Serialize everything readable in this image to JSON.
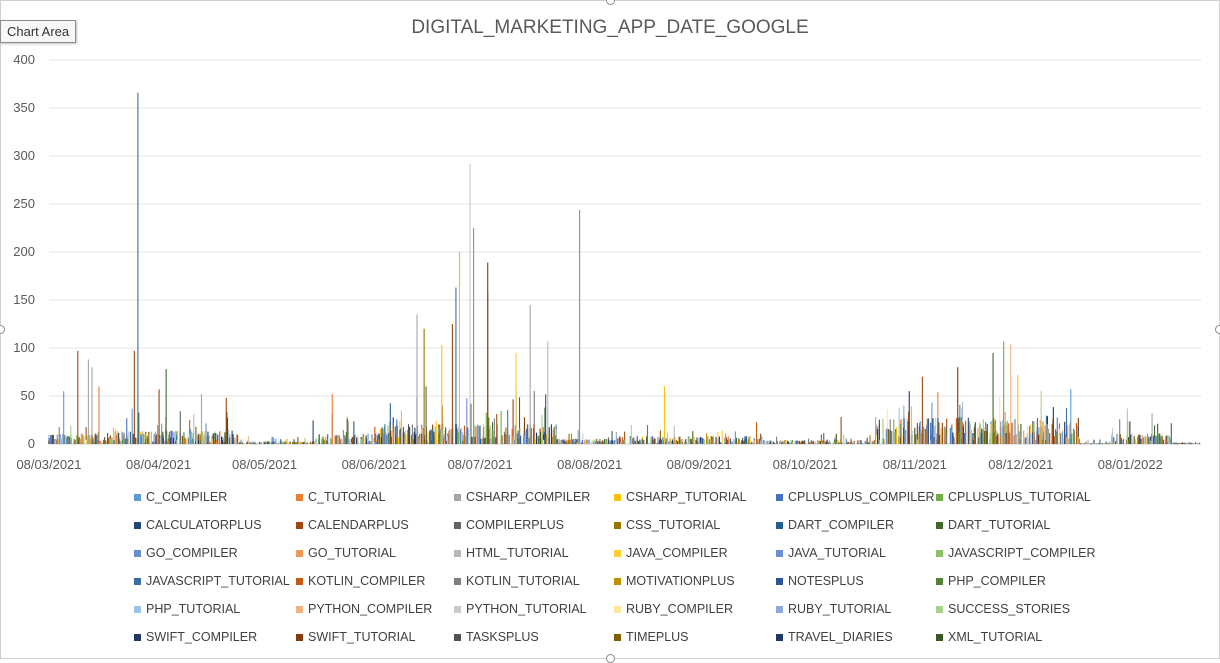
{
  "tooltip": "Chart Area",
  "chart_data": {
    "type": "bar",
    "title": "DIGITAL_MARKETING_APP_DATE_GOOGLE",
    "xlabel": "",
    "ylabel": "",
    "ylim": [
      0,
      400
    ],
    "yticks": [
      "0",
      "50",
      "100",
      "150",
      "200",
      "250",
      "300",
      "350",
      "400"
    ],
    "x_start": "08/03/2021",
    "x_end": "28/01/2022",
    "x_ticks": [
      "08/03/2021",
      "08/04/2021",
      "08/05/2021",
      "08/06/2021",
      "08/07/2021",
      "08/08/2021",
      "08/09/2021",
      "08/10/2021",
      "08/11/2021",
      "08/12/2021",
      "08/01/2022"
    ],
    "grid": true,
    "legend_position": "bottom",
    "colors": [
      "#5b9bd5",
      "#ed7d31",
      "#a5a5a5",
      "#ffc000",
      "#4472c4",
      "#70ad47",
      "#264478",
      "#9e480e",
      "#636363",
      "#997300",
      "#255e91",
      "#43682b",
      "#698ed0",
      "#f1975a",
      "#b7b7b7",
      "#ffcd33",
      "#6b8fd6",
      "#8cc168",
      "#3a6ea5",
      "#c55a11",
      "#7f7f7f",
      "#bf9000",
      "#2f5597",
      "#548235",
      "#9dc3e6",
      "#f4b183",
      "#c9c9c9",
      "#ffe699",
      "#8faadc",
      "#a9d18e",
      "#1f3864",
      "#843c0c",
      "#525252",
      "#7f6000",
      "#1f3864",
      "#375623"
    ],
    "series_names": [
      "C_COMPILER",
      "C_TUTORIAL",
      "CSHARP_COMPILER",
      "CSHARP_TUTORIAL",
      "CPLUSPLUS_COMPILER",
      "CPLUSPLUS_TUTORIAL",
      "CALCULATORPLUS",
      "CALENDARPLUS",
      "COMPILERPLUS",
      "CSS_TUTORIAL",
      "DART_COMPILER",
      "DART_TUTORIAL",
      "GO_COMPILER",
      "GO_TUTORIAL",
      "HTML_TUTORIAL",
      "JAVA_COMPILER",
      "JAVA_TUTORIAL",
      "JAVASCRIPT_COMPILER",
      "JAVASCRIPT_TUTORIAL",
      "KOTLIN_COMPILER",
      "KOTLIN_TUTORIAL",
      "MOTIVATIONPLUS",
      "NOTESPLUS",
      "PHP_COMPILER",
      "PHP_TUTORIAL",
      "PYTHON_COMPILER",
      "PYTHON_TUTORIAL",
      "RUBY_COMPILER",
      "RUBY_TUTORIAL",
      "SUCCESS_STORIES",
      "SWIFT_COMPILER",
      "SWIFT_TUTORIAL",
      "TASKSPLUS",
      "TIMEPLUS",
      "TRAVEL_DIARIES",
      "XML_TUTORIAL"
    ],
    "notable_points": [
      {
        "date": "2021-03-12",
        "value": 55,
        "series": "C_COMPILER"
      },
      {
        "date": "2021-03-16",
        "value": 97,
        "series": "CALENDARPLUS"
      },
      {
        "date": "2021-03-19",
        "value": 88,
        "series": "CSHARP_COMPILER"
      },
      {
        "date": "2021-03-20",
        "value": 80,
        "series": "CSHARP_COMPILER"
      },
      {
        "date": "2021-03-22",
        "value": 60,
        "series": "C_TUTORIAL"
      },
      {
        "date": "2021-04-01",
        "value": 97,
        "series": "CALENDARPLUS"
      },
      {
        "date": "2021-04-02",
        "value": 366,
        "series": "JAVASCRIPT_TUTORIAL"
      },
      {
        "date": "2021-04-08",
        "value": 57,
        "series": "CALENDARPLUS"
      },
      {
        "date": "2021-04-10",
        "value": 78,
        "series": "DART_TUTORIAL"
      },
      {
        "date": "2021-04-20",
        "value": 52,
        "series": "CSHARP_COMPILER"
      },
      {
        "date": "2021-04-27",
        "value": 48,
        "series": "CALENDARPLUS"
      },
      {
        "date": "2021-05-27",
        "value": 52,
        "series": "C_TUTORIAL"
      },
      {
        "date": "2021-06-20",
        "value": 135,
        "series": "CSHARP_COMPILER"
      },
      {
        "date": "2021-06-22",
        "value": 120,
        "series": "CSS_TUTORIAL"
      },
      {
        "date": "2021-06-27",
        "value": 103,
        "series": "CSHARP_TUTORIAL"
      },
      {
        "date": "2021-06-30",
        "value": 125,
        "series": "CALENDARPLUS"
      },
      {
        "date": "2021-07-01",
        "value": 163,
        "series": "JAVASCRIPT_TUTORIAL"
      },
      {
        "date": "2021-07-02",
        "value": 200,
        "series": "CSHARP_TUTORIAL"
      },
      {
        "date": "2021-07-05",
        "value": 292,
        "series": "PYTHON_TUTORIAL"
      },
      {
        "date": "2021-07-06",
        "value": 225,
        "series": "CPLUSPLUS_TUTORIAL"
      },
      {
        "date": "2021-07-10",
        "value": 189,
        "series": "SWIFT_TUTORIAL"
      },
      {
        "date": "2021-07-10",
        "value": 157,
        "series": "CALENDARPLUS"
      },
      {
        "date": "2021-07-18",
        "value": 95,
        "series": "JAVA_COMPILER"
      },
      {
        "date": "2021-07-22",
        "value": 145,
        "series": "CSHARP_COMPILER"
      },
      {
        "date": "2021-07-27",
        "value": 107,
        "series": "HTML_TUTORIAL"
      },
      {
        "date": "2021-08-05",
        "value": 244,
        "series": "C_COMPILER"
      },
      {
        "date": "2021-08-29",
        "value": 60,
        "series": "CSHARP_TUTORIAL"
      },
      {
        "date": "2021-10-18",
        "value": 28,
        "series": "CALENDARPLUS"
      },
      {
        "date": "2021-11-10",
        "value": 70,
        "series": "CALENDARPLUS"
      },
      {
        "date": "2021-11-20",
        "value": 80,
        "series": "SWIFT_TUTORIAL"
      },
      {
        "date": "2021-11-30",
        "value": 95,
        "series": "DART_TUTORIAL"
      },
      {
        "date": "2021-12-03",
        "value": 107,
        "series": "CPLUSPLUS_TUTORIAL"
      },
      {
        "date": "2021-12-05",
        "value": 104,
        "series": "PYTHON_COMPILER"
      },
      {
        "date": "2021-12-07",
        "value": 72,
        "series": "CSHARP_TUTORIAL"
      },
      {
        "date": "2021-12-22",
        "value": 57,
        "series": "C_COMPILER"
      },
      {
        "date": "2022-01-07",
        "value": 37,
        "series": "SUCCESS_STORIES"
      },
      {
        "date": "2022-01-14",
        "value": 32,
        "series": "CSHARP_COMPILER"
      }
    ],
    "activity_periods": [
      {
        "start": "2021-03-08",
        "end": "2021-03-22",
        "typical": 8,
        "max": 25
      },
      {
        "start": "2021-03-22",
        "end": "2021-05-01",
        "typical": 10,
        "max": 40
      },
      {
        "start": "2021-05-01",
        "end": "2021-05-22",
        "typical": 2,
        "max": 8
      },
      {
        "start": "2021-05-22",
        "end": "2021-06-10",
        "typical": 8,
        "max": 35
      },
      {
        "start": "2021-06-10",
        "end": "2021-07-30",
        "typical": 15,
        "max": 60
      },
      {
        "start": "2021-07-30",
        "end": "2021-08-16",
        "typical": 4,
        "max": 15
      },
      {
        "start": "2021-08-16",
        "end": "2021-09-25",
        "typical": 6,
        "max": 25
      },
      {
        "start": "2021-09-25",
        "end": "2021-10-28",
        "typical": 3,
        "max": 12
      },
      {
        "start": "2021-10-28",
        "end": "2021-12-25",
        "typical": 20,
        "max": 55
      },
      {
        "start": "2021-12-25",
        "end": "2022-01-03",
        "typical": 1,
        "max": 5
      },
      {
        "start": "2022-01-03",
        "end": "2022-01-20",
        "typical": 8,
        "max": 30
      },
      {
        "start": "2022-01-20",
        "end": "2022-01-28",
        "typical": 1,
        "max": 3
      }
    ]
  }
}
